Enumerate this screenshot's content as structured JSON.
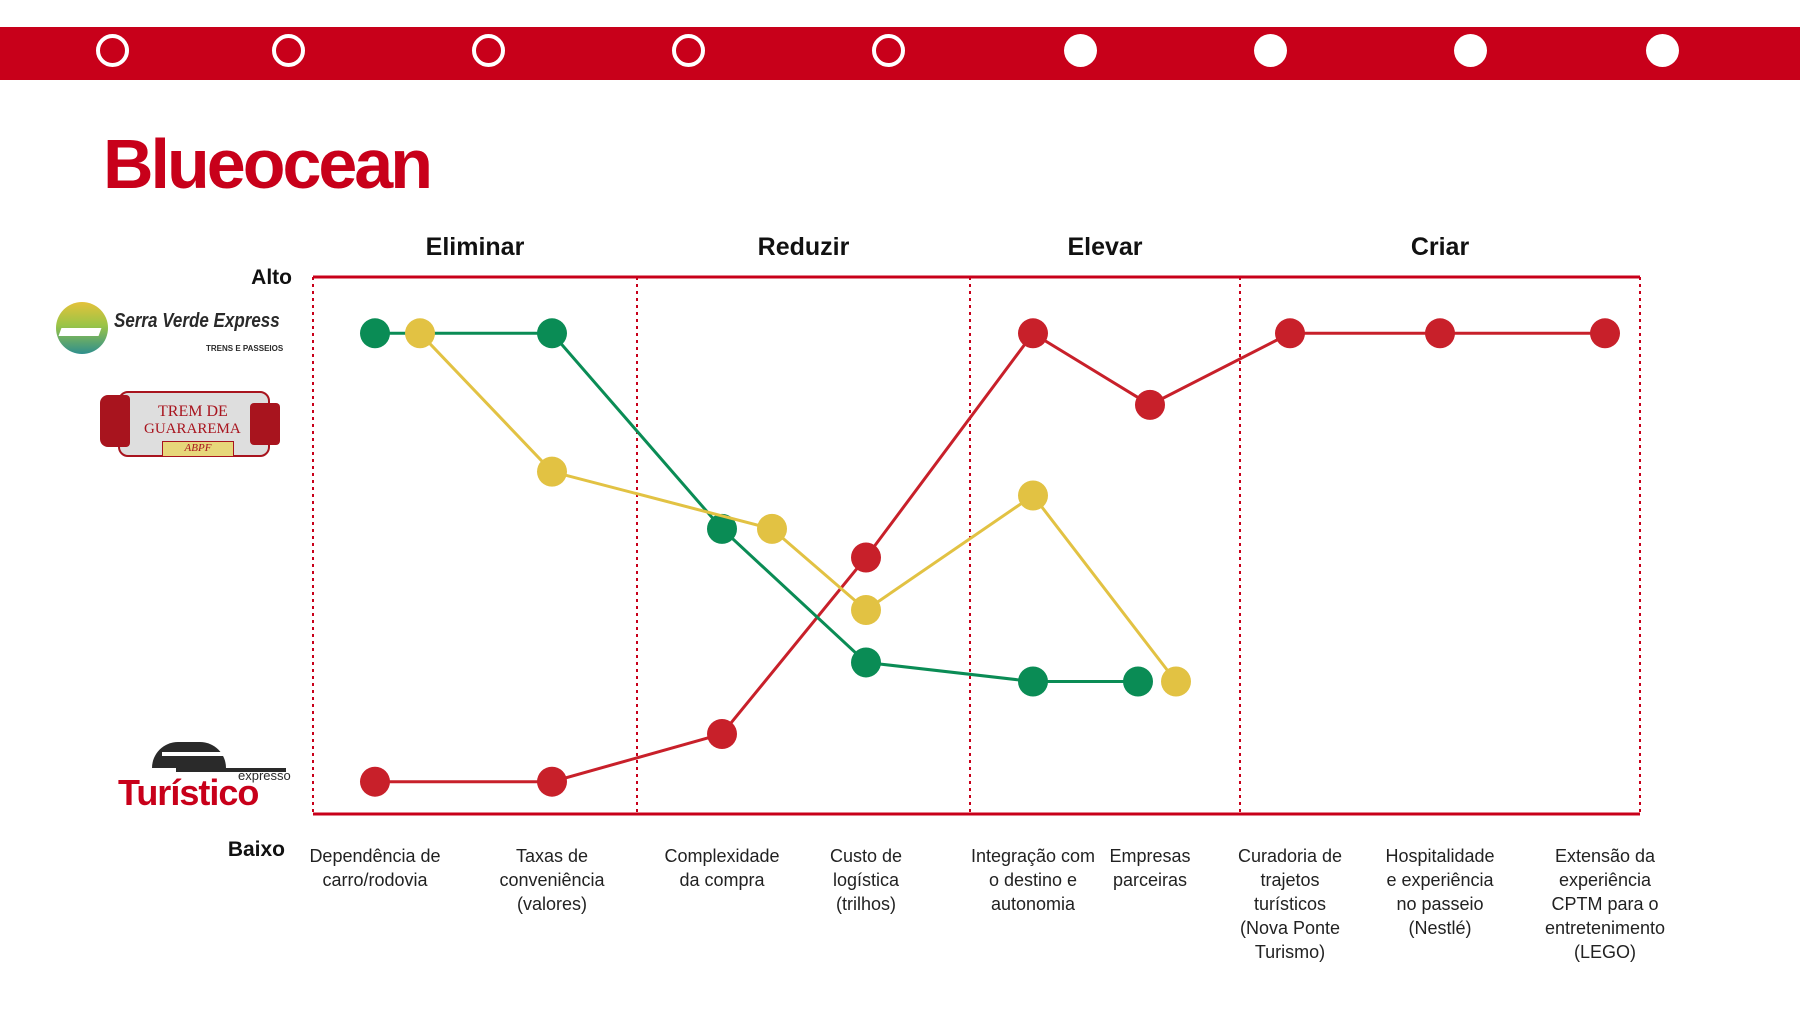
{
  "header": {
    "title": "Blueocean",
    "progress_dots": [
      {
        "state": "hollow"
      },
      {
        "state": "hollow"
      },
      {
        "state": "hollow"
      },
      {
        "state": "hollow"
      },
      {
        "state": "hollow"
      },
      {
        "state": "filled"
      },
      {
        "state": "filled"
      },
      {
        "state": "filled"
      },
      {
        "state": "filled"
      }
    ]
  },
  "logos": {
    "serra_verde": {
      "name": "Serra Verde Express",
      "subtitle": "TRENS E PASSEIOS"
    },
    "trem_guararema": {
      "line1": "TREM DE",
      "line2": "GUARAREMA",
      "badge": "ABPF"
    },
    "expresso_turistico": {
      "small": "expresso",
      "big": "Turístico"
    }
  },
  "colors": {
    "brand_red": "#c8001a",
    "expresso_turistico": "#c8202a",
    "serra_verde": "#0a8c55",
    "trem_guararema": "#e2c243"
  },
  "chart_data": {
    "type": "line",
    "title": "",
    "y_high_label": "Alto",
    "y_low_label": "Baixo",
    "ylim": [
      0,
      10
    ],
    "sections": [
      {
        "label": "Eliminar",
        "start": 0,
        "end": 1
      },
      {
        "label": "Reduzir",
        "start": 2,
        "end": 3
      },
      {
        "label": "Elevar",
        "start": 4,
        "end": 5
      },
      {
        "label": "Criar",
        "start": 6,
        "end": 8
      }
    ],
    "categories": [
      "Dependência de carro/rodovia",
      "Taxas de conveniência (valores)",
      "Complexidade da compra",
      "Custo de logística (trilhos)",
      "Integração com o destino e autonomia",
      "Empresas parceiras",
      "Curadoria de trajetos turísticos (Nova Ponte Turismo)",
      "Hospitalidade e experiência no passeio (Nestlé)",
      "Extensão da experiência CPTM para o entretenimento (LEGO)"
    ],
    "series": [
      {
        "color": "#c8202a",
        "points": [
          {
            "cat": 0,
            "y": 0.3
          },
          {
            "cat": 1,
            "y": 0.3
          },
          {
            "cat": 2,
            "y": 1.3
          },
          {
            "cat": 3,
            "y": 5.0
          },
          {
            "cat": 4,
            "y": 9.7
          },
          {
            "cat": 5,
            "y": 8.2
          },
          {
            "cat": 6,
            "y": 9.7
          },
          {
            "cat": 7,
            "y": 9.7
          },
          {
            "cat": 8,
            "y": 9.7
          }
        ]
      },
      {
        "color": "#0a8c55",
        "points": [
          {
            "cat": 0,
            "y": 9.7
          },
          {
            "cat": 1,
            "y": 9.7
          },
          {
            "cat": 2,
            "y": 5.6
          },
          {
            "cat": 3,
            "y": 2.8
          },
          {
            "cat": 4,
            "y": 2.4
          },
          {
            "cat": 5,
            "y": 2.4
          }
        ]
      },
      {
        "color": "#e2c243",
        "points": [
          {
            "cat": 0,
            "y": 9.7
          },
          {
            "cat": 1,
            "y": 6.8
          },
          {
            "cat": 2,
            "y": 5.6
          },
          {
            "cat": 3,
            "y": 3.9
          },
          {
            "cat": 4,
            "y": 6.3
          },
          {
            "cat": 5,
            "y": 2.4
          }
        ]
      }
    ],
    "grid": false
  }
}
